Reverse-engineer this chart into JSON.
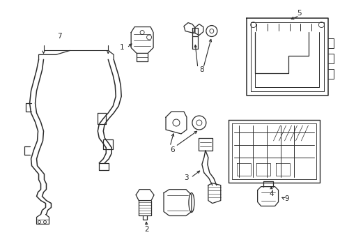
{
  "bg_color": "#ffffff",
  "line_color": "#2a2a2a",
  "lw": 0.9,
  "fig_width": 4.89,
  "fig_height": 3.6,
  "dpi": 100
}
